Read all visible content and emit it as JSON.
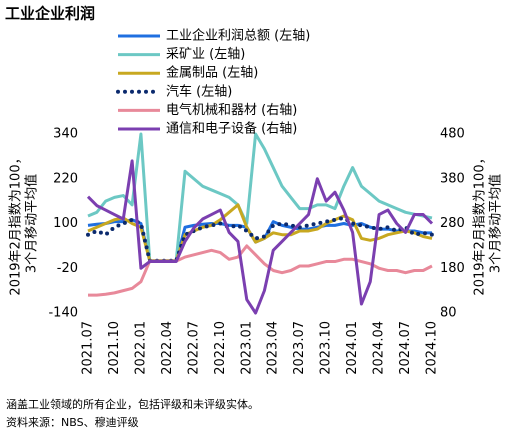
{
  "chart_data": {
    "type": "line",
    "title": "工业企业利润",
    "ylabel": [
      "2019年2月指数为100，",
      "3个月移动平均值"
    ],
    "y2label": [
      "2019年2月指数为100，",
      "3个月移动平均值"
    ],
    "categories": [
      "2021.07",
      null,
      null,
      "2021.10",
      null,
      null,
      "2022.01",
      null,
      null,
      "2022.04",
      null,
      null,
      "2022.07",
      null,
      null,
      "2022.10",
      null,
      null,
      "2023.01",
      null,
      null,
      "2023.04",
      null,
      null,
      "2023.07",
      null,
      null,
      "2023.10",
      null,
      null,
      "2024.01",
      null,
      null,
      "2024.04",
      null,
      null,
      "2024.07",
      null,
      null,
      "2024.10"
    ],
    "ylim": [
      -140,
      340
    ],
    "yticks": [
      -140,
      -20,
      100,
      220,
      340
    ],
    "y2lim": [
      80,
      480
    ],
    "y2ticks": [
      80,
      180,
      280,
      380,
      480
    ],
    "series": [
      {
        "name": "工业企业利润总额 (左轴)",
        "color": "#1f6fe0",
        "values": [
          95,
          98,
          100,
          105,
          105,
          110,
          100,
          0,
          0,
          0,
          0,
          90,
          95,
          98,
          100,
          100,
          95,
          95,
          90,
          50,
          60,
          105,
          95,
          90,
          85,
          85,
          90,
          95,
          95,
          100,
          95,
          100,
          90,
          85,
          85,
          80,
          80,
          80,
          75,
          75
        ]
      },
      {
        "name": "采矿业 (左轴)",
        "color": "#6cc8c4",
        "values": [
          120,
          130,
          160,
          170,
          175,
          150,
          340,
          0,
          0,
          0,
          0,
          240,
          220,
          200,
          190,
          180,
          170,
          150,
          100,
          340,
          300,
          250,
          200,
          170,
          140,
          140,
          150,
          150,
          140,
          200,
          250,
          200,
          180,
          160,
          150,
          140,
          130,
          125,
          120,
          115
        ]
      },
      {
        "name": "金属制品 (左轴)",
        "color": "#c8a820",
        "values": [
          80,
          90,
          100,
          110,
          115,
          100,
          90,
          0,
          0,
          0,
          0,
          70,
          80,
          90,
          95,
          110,
          130,
          150,
          90,
          50,
          60,
          75,
          70,
          70,
          80,
          80,
          85,
          100,
          110,
          120,
          110,
          60,
          55,
          60,
          70,
          75,
          80,
          75,
          65,
          60
        ]
      },
      {
        "name": "汽车 (左轴)",
        "color": "#0b2a6e",
        "linestyle": "dotted",
        "values": [
          70,
          80,
          70,
          90,
          100,
          110,
          100,
          0,
          0,
          0,
          0,
          70,
          80,
          90,
          95,
          100,
          90,
          95,
          80,
          60,
          65,
          95,
          100,
          95,
          90,
          95,
          100,
          105,
          110,
          115,
          100,
          95,
          90,
          85,
          90,
          80,
          90,
          70,
          75,
          70
        ]
      },
      {
        "name": "电气机械和器材 (右轴)",
        "color": "#e8899a",
        "axis": "y2",
        "values": [
          120,
          120,
          122,
          125,
          130,
          135,
          150,
          196,
          196,
          196,
          196,
          205,
          210,
          215,
          220,
          215,
          200,
          205,
          230,
          210,
          190,
          175,
          170,
          175,
          185,
          185,
          190,
          195,
          195,
          200,
          200,
          195,
          190,
          180,
          175,
          175,
          170,
          175,
          175,
          185
        ]
      },
      {
        "name": "通信和电子设备 (右轴)",
        "color": "#7b3fb0",
        "axis": "y2",
        "values": [
          340,
          320,
          310,
          300,
          290,
          420,
          180,
          195,
          195,
          195,
          195,
          240,
          270,
          290,
          300,
          310,
          260,
          240,
          110,
          80,
          130,
          220,
          240,
          260,
          280,
          300,
          380,
          330,
          350,
          310,
          260,
          100,
          150,
          300,
          310,
          280,
          260,
          300,
          300,
          280
        ]
      }
    ],
    "notes": [
      "涵盖工业领域的所有企业，包括评级和未评级实体。",
      "资料来源：NBS、穆迪评级"
    ]
  }
}
